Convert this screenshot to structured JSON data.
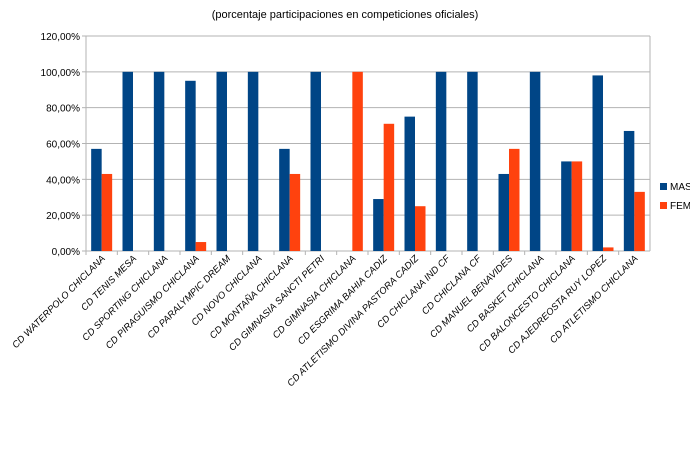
{
  "chart_data": {
    "type": "bar",
    "title": "(porcentaje participaciones en competiciones oficiales)",
    "xlabel": "",
    "ylabel": "",
    "ylim": [
      0,
      120
    ],
    "yticks": [
      "0,00%",
      "20,00%",
      "40,00%",
      "60,00%",
      "80,00%",
      "100,00%",
      "120,00%"
    ],
    "grid": true,
    "legend_position": "right",
    "categories": [
      "CD WATERPOLO CHICLANA",
      "CD TENIS MESA",
      "CD SPORTING CHICLANA",
      "CD PIRAGUISMO CHICLANA",
      "CD PARALYMPIC DREAM",
      "CD NOVO CHICLANA",
      "CD MONTAÑA CHICLANA",
      "CD GIMNASIA SANCTI PETRI",
      "CD GIMNASIA CHICLANA",
      "CD ESGRIMA BAHIA CADIZ",
      "CD ATLETISMO DIVINA PASTORA CADIZ",
      "CD CHICLANA IND CF",
      "CD CHICLANA CF",
      "CD MANUEL BENAVIDES",
      "CD BASKET CHICLANA",
      "CD BALONCESTO CHICLANA",
      "CD AJEDREOSTA RUY LOPEZ",
      "CD ATLETISMO CHICLANA"
    ],
    "series": [
      {
        "name": "MAS",
        "color": "#004586",
        "values": [
          57,
          100,
          100,
          95,
          100,
          100,
          57,
          100,
          0,
          29,
          75,
          100,
          100,
          43,
          100,
          50,
          98,
          67
        ]
      },
      {
        "name": "FEM",
        "color": "#ff420e",
        "values": [
          43,
          0,
          0,
          5,
          0,
          0,
          43,
          0,
          100,
          71,
          25,
          0,
          0,
          57,
          0,
          50,
          2,
          33
        ]
      }
    ]
  }
}
